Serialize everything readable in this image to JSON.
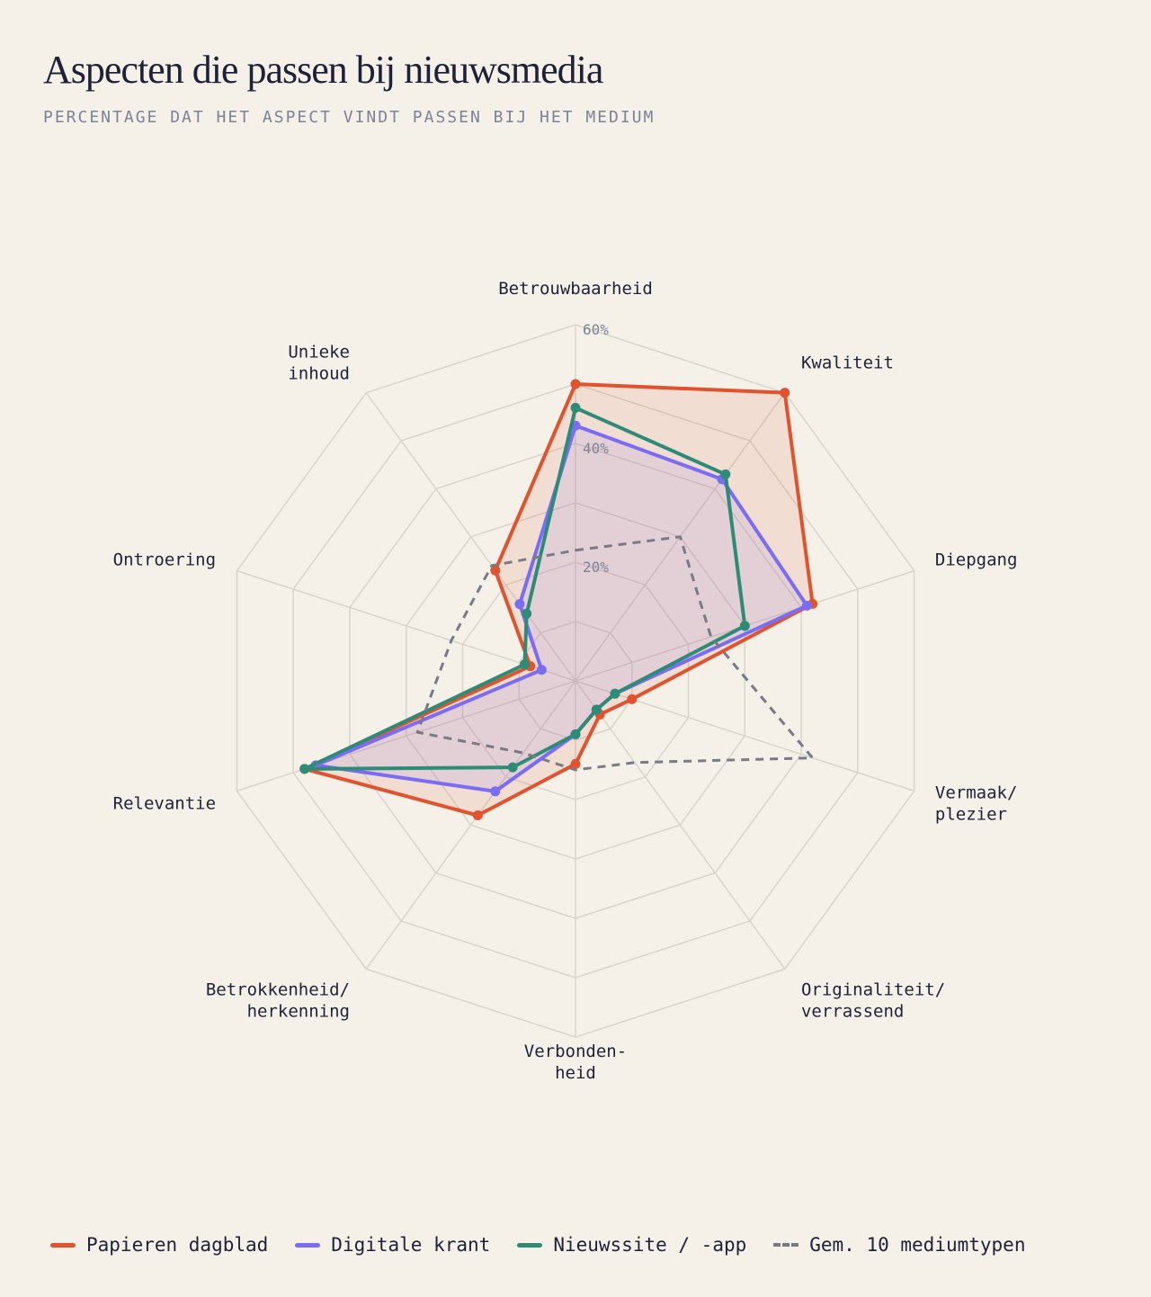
{
  "title": "Aspecten die passen bij nieuwsmedia",
  "subtitle": "PERCENTAGE DAT HET ASPECT VINDT PASSEN BIJ HET MEDIUM",
  "chart_data": {
    "type": "radar",
    "axes": [
      [
        "Betrouwbaarheid"
      ],
      [
        "Kwaliteit"
      ],
      [
        "Diepgang"
      ],
      [
        "Vermaak/",
        "plezier"
      ],
      [
        "Originaliteit/",
        "verrassend"
      ],
      [
        "Verbonden-",
        "heid"
      ],
      [
        "Betrokkenheid/",
        "herkenning"
      ],
      [
        "Relevantie"
      ],
      [
        "Ontroering"
      ],
      [
        "Unieke",
        "inhoud"
      ]
    ],
    "rlim": [
      0,
      60
    ],
    "ticks": [
      20,
      40,
      60
    ],
    "tick_labels": [
      "20%",
      "40%",
      "60%"
    ],
    "grid": true,
    "legend_position": "bottom",
    "series": [
      {
        "name": "Papieren dagblad",
        "color": "#e0532e",
        "style": "solid",
        "fill": true,
        "values": [
          50,
          60,
          42,
          10,
          7,
          14,
          28,
          48,
          8,
          23
        ]
      },
      {
        "name": "Digitale krant",
        "color": "#7b6cf6",
        "style": "solid",
        "fill": true,
        "values": [
          43,
          42,
          41,
          7,
          6,
          9,
          23,
          46,
          6,
          16
        ]
      },
      {
        "name": "Nieuwssite / -app",
        "color": "#2e8b76",
        "style": "solid",
        "fill": false,
        "values": [
          46,
          43,
          30,
          7,
          6,
          9,
          18,
          48,
          9,
          14
        ]
      },
      {
        "name": "Gem. 10 mediumtypen",
        "color": "#7a7a85",
        "style": "dashed",
        "fill": false,
        "values": [
          22,
          30,
          24,
          42,
          17,
          15,
          15,
          28,
          22,
          24
        ]
      }
    ]
  }
}
